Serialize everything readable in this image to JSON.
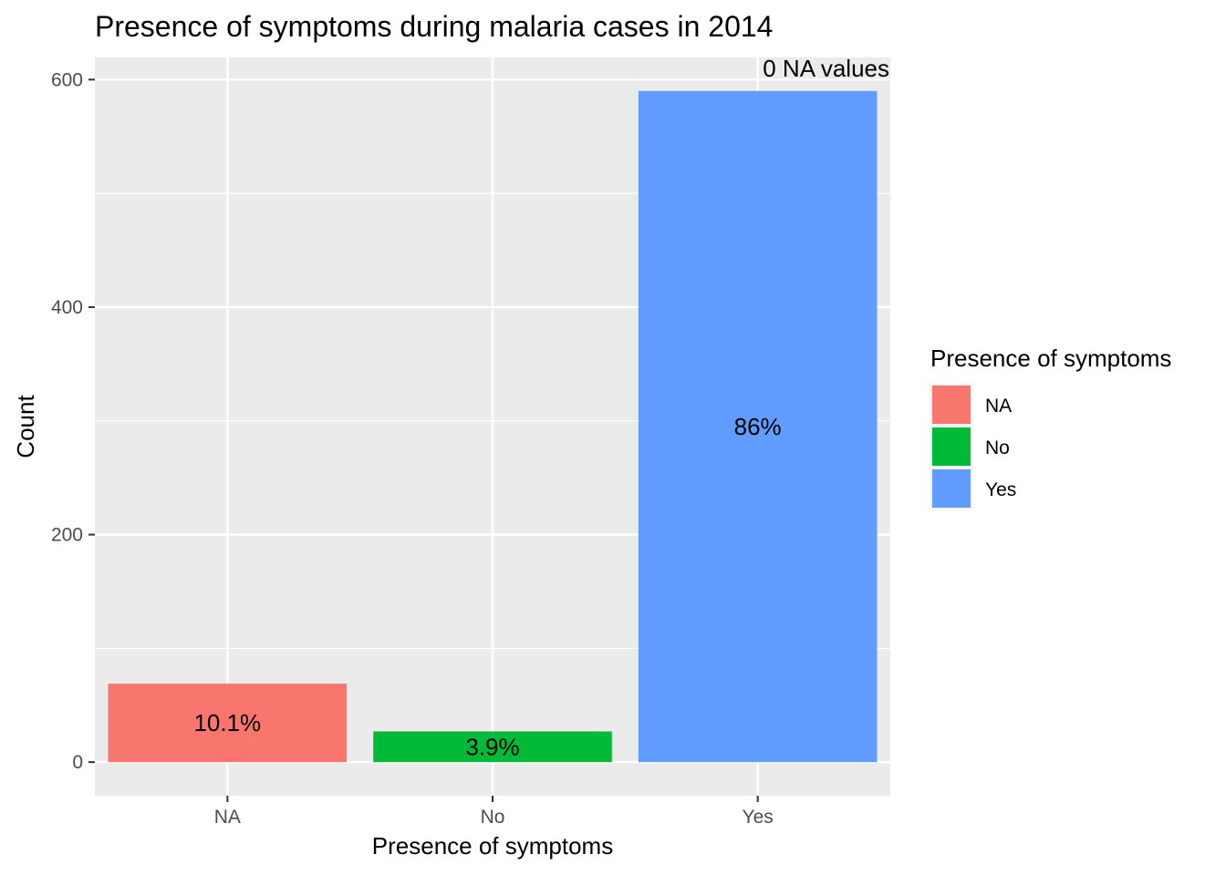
{
  "chart_data": {
    "type": "bar",
    "title": "Presence of symptoms during malaria cases in 2014",
    "xlabel": "Presence of symptoms",
    "ylabel": "Count",
    "categories": [
      "NA",
      "No",
      "Yes"
    ],
    "values": [
      69,
      27,
      590
    ],
    "bar_labels": [
      "10.1%",
      "3.9%",
      "86%"
    ],
    "colors": [
      "#F8766D",
      "#00BA38",
      "#619CFF"
    ],
    "ylim": [
      -29.5,
      619.5
    ],
    "yticks": [
      0,
      200,
      400,
      600
    ],
    "ytick_labels": [
      "0",
      "200",
      "400",
      "600"
    ],
    "y_minor_ticks": [
      100,
      300,
      500
    ],
    "annotation": "0 NA values",
    "grid": true,
    "legend": {
      "title": "Presence of symptoms",
      "position": "right",
      "entries": [
        "NA",
        "No",
        "Yes"
      ]
    },
    "background": "#EBEBEB",
    "gridline_color": "#FFFFFF"
  }
}
